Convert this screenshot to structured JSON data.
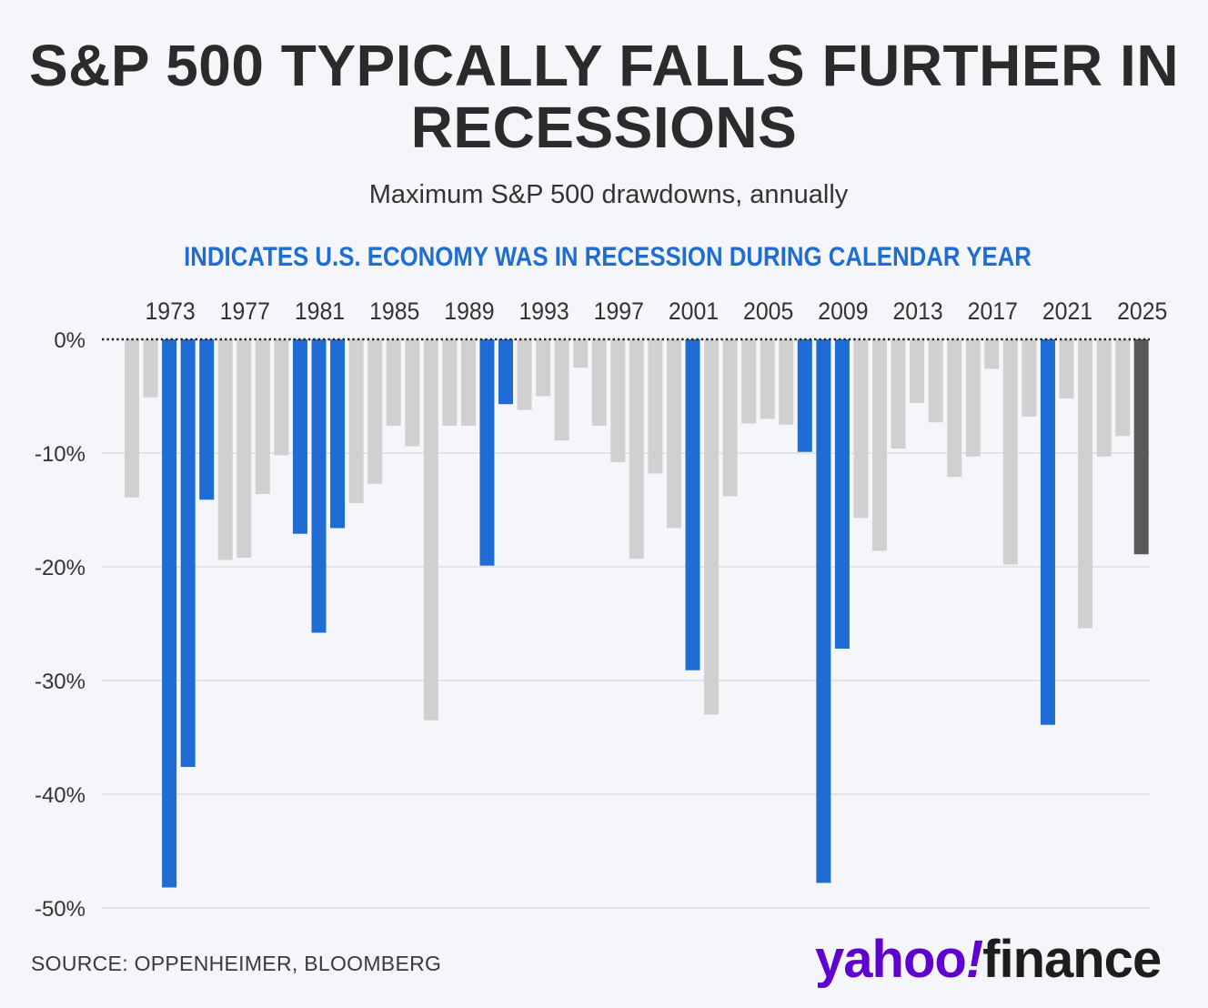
{
  "header": {
    "title": "S&P 500 TYPICALLY FALLS FURTHER IN RECESSIONS",
    "subtitle": "Maximum S&P 500 drawdowns, annually",
    "legend_note": "INDICATES U.S. ECONOMY WAS IN RECESSION DURING CALENDAR YEAR"
  },
  "footer": {
    "source": "SOURCE: OPPENHEIMER, BLOOMBERG",
    "logo_yahoo": "yahoo",
    "logo_bang": "!",
    "logo_finance": "finance"
  },
  "colors": {
    "recession": "#1f6dd4",
    "non_recession": "#d0d0d0",
    "current_year": "#5a5a5a",
    "grid": "#dcdde2",
    "text": "#333333",
    "logo_purple": "#6001d2"
  },
  "chart_data": {
    "type": "bar",
    "title": "S&P 500 TYPICALLY FALLS FURTHER IN RECESSIONS",
    "subtitle": "Maximum S&P 500 drawdowns, annually",
    "x_tick_labels": [
      "1973",
      "1977",
      "1981",
      "1985",
      "1989",
      "1993",
      "1997",
      "2001",
      "2005",
      "2009",
      "2013",
      "2017",
      "2021",
      "2025"
    ],
    "y_ticks": [
      0,
      -10,
      -20,
      -30,
      -40,
      -50
    ],
    "y_tick_labels": [
      "0%",
      "-10%",
      "-20%",
      "-30%",
      "-40%",
      "-50%"
    ],
    "ylim": [
      -50,
      0
    ],
    "grid": true,
    "legend": "top",
    "legend_entries": [
      "INDICATES U.S. ECONOMY WAS IN RECESSION DURING CALENDAR YEAR"
    ],
    "categories": [
      1971,
      1972,
      1973,
      1974,
      1975,
      1976,
      1977,
      1978,
      1979,
      1980,
      1981,
      1982,
      1983,
      1984,
      1985,
      1986,
      1987,
      1988,
      1989,
      1990,
      1991,
      1992,
      1993,
      1994,
      1995,
      1996,
      1997,
      1998,
      1999,
      2000,
      2001,
      2002,
      2003,
      2004,
      2005,
      2006,
      2007,
      2008,
      2009,
      2010,
      2011,
      2012,
      2013,
      2014,
      2015,
      2016,
      2017,
      2018,
      2019,
      2020,
      2021,
      2022,
      2023,
      2024,
      2025
    ],
    "values": [
      -13.9,
      -5.1,
      -48.2,
      -37.6,
      -14.1,
      -19.4,
      -19.2,
      -13.6,
      -10.2,
      -17.1,
      -25.8,
      -16.6,
      -14.4,
      -12.7,
      -7.6,
      -9.4,
      -33.5,
      -7.6,
      -7.6,
      -19.9,
      -5.7,
      -6.2,
      -5.0,
      -8.9,
      -2.5,
      -7.6,
      -10.8,
      -19.3,
      -11.8,
      -16.6,
      -29.1,
      -33.0,
      -13.8,
      -7.4,
      -7.0,
      -7.5,
      -9.9,
      -47.8,
      -27.2,
      -15.7,
      -18.6,
      -9.6,
      -5.6,
      -7.3,
      -12.1,
      -10.3,
      -2.6,
      -19.8,
      -6.8,
      -33.9,
      -5.2,
      -25.4,
      -10.3,
      -8.5,
      -18.9
    ],
    "series_status": [
      "non_recession",
      "non_recession",
      "recession",
      "recession",
      "recession",
      "non_recession",
      "non_recession",
      "non_recession",
      "non_recession",
      "recession",
      "recession",
      "recession",
      "non_recession",
      "non_recession",
      "non_recession",
      "non_recession",
      "non_recession",
      "non_recession",
      "non_recession",
      "recession",
      "recession",
      "non_recession",
      "non_recession",
      "non_recession",
      "non_recession",
      "non_recession",
      "non_recession",
      "non_recession",
      "non_recession",
      "non_recession",
      "recession",
      "non_recession",
      "non_recession",
      "non_recession",
      "non_recession",
      "non_recession",
      "recession",
      "recession",
      "recession",
      "non_recession",
      "non_recession",
      "non_recession",
      "non_recession",
      "non_recession",
      "non_recession",
      "non_recession",
      "non_recession",
      "non_recession",
      "non_recession",
      "recession",
      "non_recession",
      "non_recession",
      "non_recession",
      "non_recession",
      "current_year"
    ]
  }
}
